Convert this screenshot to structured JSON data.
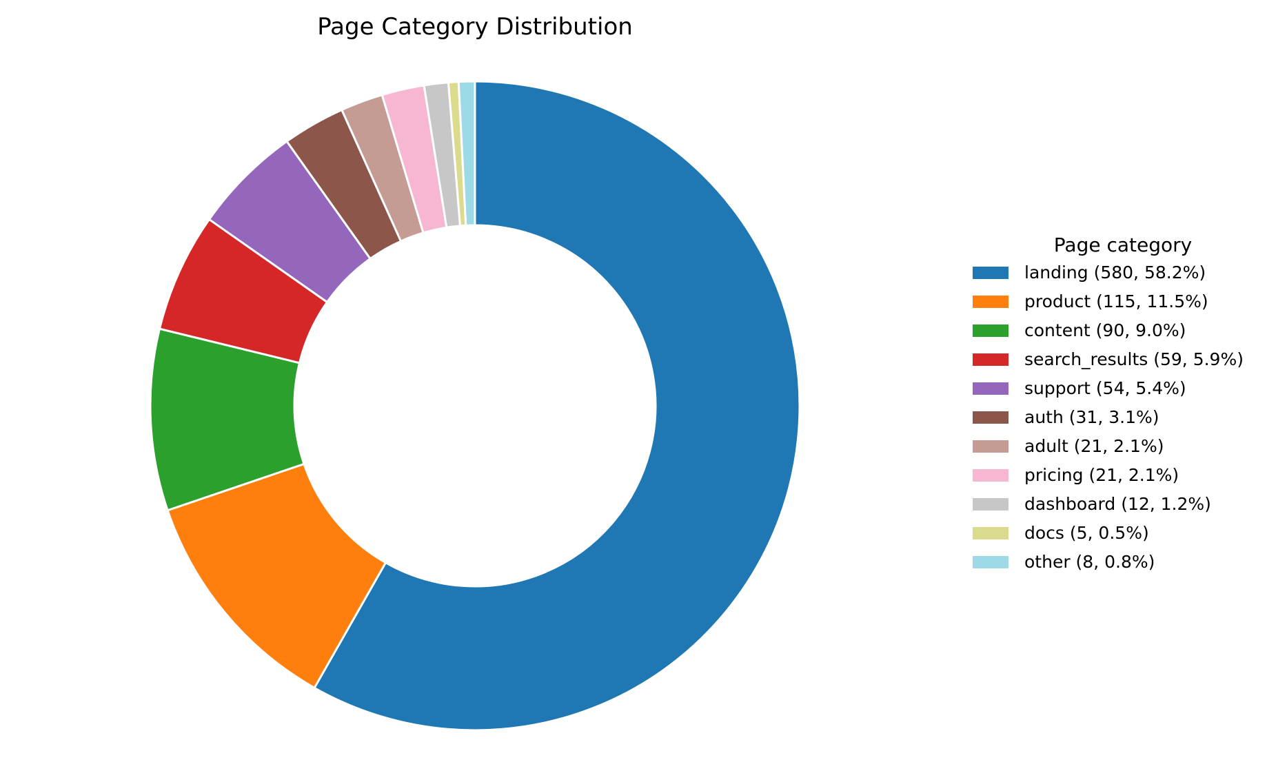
{
  "chart_data": {
    "type": "pie",
    "variant": "donut",
    "title": "Page Category Distribution",
    "legend": {
      "title": "Page category",
      "placement": "right"
    },
    "start_angle_deg": 90,
    "direction": "clockwise",
    "slices": [
      {
        "label": "landing (580, 58.2%)",
        "category": "landing",
        "value": 580,
        "percent": 58.2,
        "color": "#1f77b4"
      },
      {
        "label": "product (115, 11.5%)",
        "category": "product",
        "value": 115,
        "percent": 11.5,
        "color": "#ff7f0e"
      },
      {
        "label": "content (90, 9.0%)",
        "category": "content",
        "value": 90,
        "percent": 9.0,
        "color": "#2ca02c"
      },
      {
        "label": "search_results (59, 5.9%)",
        "category": "search_results",
        "value": 59,
        "percent": 5.9,
        "color": "#d62728"
      },
      {
        "label": "support (54, 5.4%)",
        "category": "support",
        "value": 54,
        "percent": 5.4,
        "color": "#9467bd"
      },
      {
        "label": "auth (31, 3.1%)",
        "category": "auth",
        "value": 31,
        "percent": 3.1,
        "color": "#8c564b"
      },
      {
        "label": "adult (21, 2.1%)",
        "category": "adult",
        "value": 21,
        "percent": 2.1,
        "color": "#c49c94"
      },
      {
        "label": "pricing (21, 2.1%)",
        "category": "pricing",
        "value": 21,
        "percent": 2.1,
        "color": "#f7b6d2"
      },
      {
        "label": "dashboard (12, 1.2%)",
        "category": "dashboard",
        "value": 12,
        "percent": 1.2,
        "color": "#c7c7c7"
      },
      {
        "label": "docs (5, 0.5%)",
        "category": "docs",
        "value": 5,
        "percent": 0.5,
        "color": "#dbdb8d"
      },
      {
        "label": "other (8, 0.8%)",
        "category": "other",
        "value": 8,
        "percent": 0.8,
        "color": "#9edae5"
      }
    ]
  }
}
